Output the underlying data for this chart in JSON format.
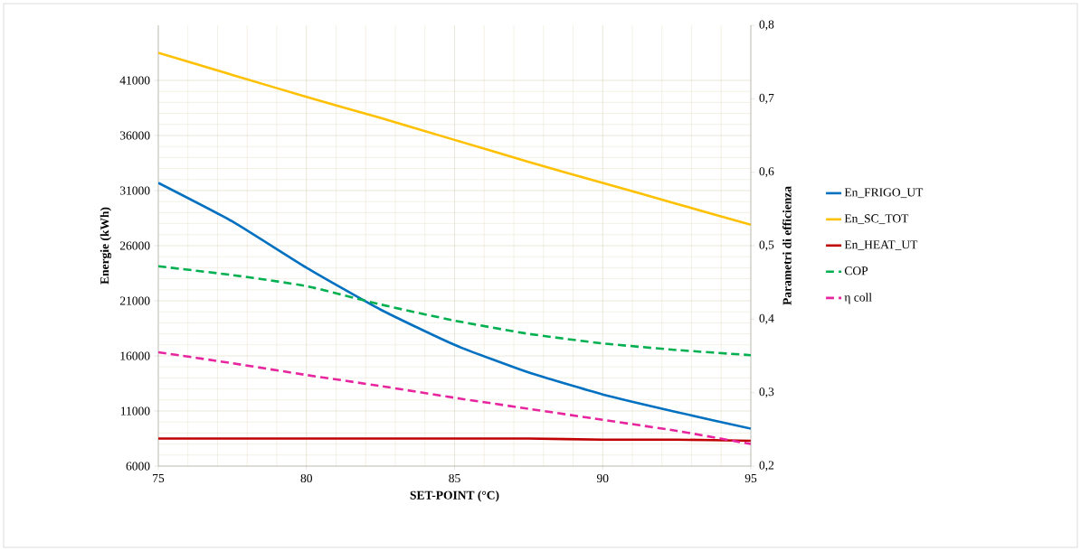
{
  "chart_data": {
    "type": "line",
    "xlabel": "SET-POINT (°C)",
    "ylabel": "Energie (kWh)",
    "y2label": "Parametri  di efficienza",
    "x": [
      75,
      77.5,
      80,
      82.5,
      85,
      87.5,
      90,
      92.5,
      95
    ],
    "series": [
      {
        "name": "En_FRIGO_UT",
        "color": "#0070c0",
        "line_style": "solid",
        "values": [
          31700,
          28200,
          24000,
          20200,
          17000,
          14500,
          12500,
          10900,
          9400
        ]
      },
      {
        "name": "En_SC_TOT",
        "color": "#ffc000",
        "line_style": "solid",
        "values": [
          43500,
          41500,
          39500,
          37600,
          35600,
          33600,
          31700,
          29800,
          27900
        ]
      },
      {
        "name": "En_HEAT_UT",
        "color": "#c00000",
        "line_style": "solid",
        "values": [
          8500,
          8500,
          8500,
          8500,
          8500,
          8500,
          8400,
          8400,
          8300
        ]
      },
      {
        "name": "COP",
        "color": "#00b050",
        "line_style": "dashed",
        "axis": "y2",
        "values": [
          0.472,
          0.46,
          0.445,
          0.42,
          0.398,
          0.38,
          0.367,
          0.358,
          0.351
        ]
      },
      {
        "name": "η coll",
        "color": "#e6259e",
        "line_style": "dashed",
        "axis": "y2",
        "values": [
          0.355,
          0.34,
          0.324,
          0.309,
          0.293,
          0.278,
          0.263,
          0.248,
          0.23
        ]
      }
    ],
    "xlim": [
      75,
      95
    ],
    "xticks": [
      75,
      80,
      85,
      90,
      95
    ],
    "ylim": [
      6000,
      46000
    ],
    "yticks": [
      6000,
      11000,
      16000,
      21000,
      26000,
      31000,
      36000,
      41000
    ],
    "y2lim": [
      0.2,
      0.8
    ],
    "y2ticks": [
      {
        "value": 0.2,
        "label": "0,2"
      },
      {
        "value": 0.3,
        "label": "0,3"
      },
      {
        "value": 0.4,
        "label": "0,4"
      },
      {
        "value": 0.5,
        "label": "0,5"
      },
      {
        "value": 0.6,
        "label": "0,6"
      },
      {
        "value": 0.7,
        "label": "0,7"
      },
      {
        "value": 0.8,
        "label": "0,8"
      }
    ],
    "grid": true,
    "legend": "right",
    "marker": "none"
  }
}
